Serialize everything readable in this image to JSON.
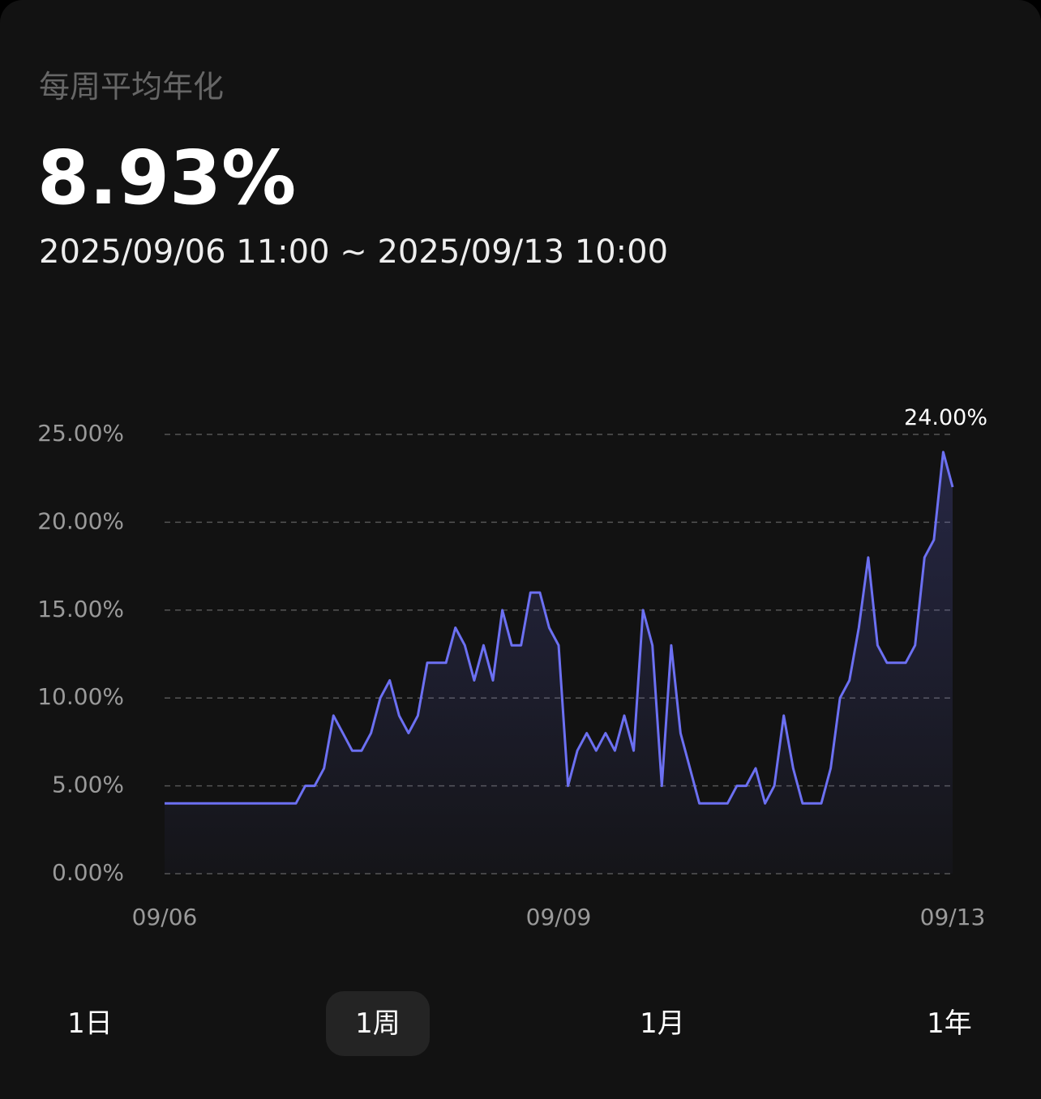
{
  "header": {
    "title": "每周平均年化",
    "value": "8.93%",
    "range": "2025/09/06 11:00 ~ 2025/09/13 10:00"
  },
  "chart_data": {
    "type": "line",
    "color": "#6c70f2",
    "grid": true,
    "values": [
      4,
      4,
      4,
      4,
      4,
      4,
      4,
      4,
      4,
      4,
      4,
      4,
      4,
      4,
      4,
      5,
      5,
      6,
      9,
      8,
      7,
      7,
      8,
      10,
      11,
      9,
      8,
      9,
      12,
      12,
      12,
      14,
      13,
      11,
      13,
      11,
      15,
      13,
      13,
      16,
      16,
      14,
      13,
      5,
      7,
      8,
      7,
      8,
      7,
      9,
      7,
      15,
      13,
      5,
      13,
      8,
      6,
      4,
      4,
      4,
      4,
      5,
      5,
      6,
      4,
      5,
      9,
      6,
      4,
      4,
      4,
      6,
      10,
      11,
      14,
      18,
      13,
      12,
      12,
      12,
      13,
      18,
      19,
      24,
      22
    ],
    "xlim": [
      0,
      84
    ],
    "xticks": [
      {
        "value": 0,
        "label": "09/06"
      },
      {
        "value": 42,
        "label": "09/09"
      },
      {
        "value": 84,
        "label": "09/13"
      }
    ],
    "ylim": [
      0,
      25
    ],
    "yticks": [
      {
        "value": 0,
        "label": "0.00%"
      },
      {
        "value": 5,
        "label": "5.00%"
      },
      {
        "value": 10,
        "label": "10.00%"
      },
      {
        "value": 15,
        "label": "15.00%"
      },
      {
        "value": 20,
        "label": "20.00%"
      },
      {
        "value": 25,
        "label": "25.00%"
      }
    ],
    "annotation": {
      "value": 24,
      "label": "24.00%"
    }
  },
  "tabs": [
    {
      "label": "1日"
    },
    {
      "label": "1周"
    },
    {
      "label": "1月"
    },
    {
      "label": "1年"
    }
  ],
  "selected_tab": 1
}
